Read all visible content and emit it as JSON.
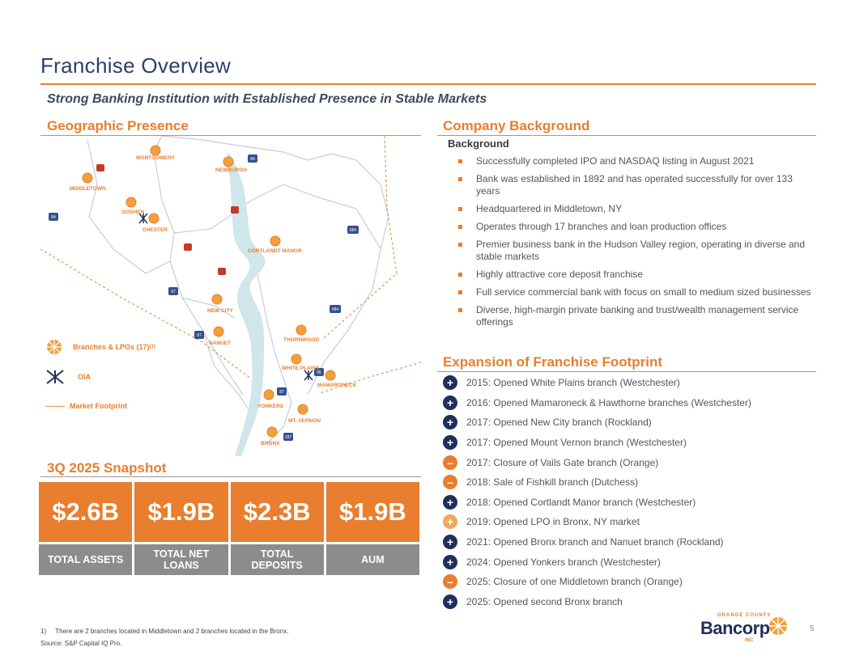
{
  "page": {
    "title": "Franchise Overview",
    "subtitle": "Strong Banking Institution with Established Presence in Stable Markets",
    "page_number": "5"
  },
  "geographic": {
    "heading": "Geographic Presence",
    "places": [
      "MONTGOMERY",
      "NEWBURGH",
      "MIDDLETOWN",
      "GOSHEN",
      "CHESTER",
      "CORTLANDT MANOR",
      "NEW CITY",
      "NANUET",
      "THORNWOOD",
      "WHITE PLAINS",
      "MAMARONECK",
      "YONKERS",
      "MT. VERNON",
      "BRONX"
    ],
    "highways": [
      "84",
      "84",
      "87",
      "87",
      "87",
      "684",
      "684",
      "95",
      "287"
    ],
    "legend": {
      "branches": "Branches & LPOs (17)",
      "branches_note": "(1)",
      "oia": "OIA",
      "footprint_dashes": "--------",
      "footprint": "Market Footprint"
    }
  },
  "snapshot": {
    "heading": "3Q 2025 Snapshot",
    "tiles": [
      {
        "value": "$2.6B",
        "label": "TOTAL ASSETS"
      },
      {
        "value": "$1.9B",
        "label": "TOTAL NET LOANS"
      },
      {
        "value": "$2.3B",
        "label": "TOTAL DEPOSITS"
      },
      {
        "value": "$1.9B",
        "label": "AUM"
      }
    ]
  },
  "background": {
    "heading": "Company Background",
    "subheading": "Background",
    "items": [
      "Successfully completed IPO and NASDAQ listing in August 2021",
      "Bank was established in 1892 and has operated successfully for over 133 years",
      "Headquartered in Middletown, NY",
      "Operates through 17 branches and loan production offices",
      "Premier business bank in the Hudson Valley region, operating in diverse and stable markets",
      "Highly attractive core deposit franchise",
      "Full service commercial bank with focus on small to medium sized businesses",
      "Diverse, high-margin private banking and trust/wealth management service offerings"
    ]
  },
  "expansion": {
    "heading": "Expansion of Franchise Footprint",
    "items": [
      {
        "type": "plus",
        "symbol": "+",
        "text": "2015: Opened White Plains branch (Westchester)"
      },
      {
        "type": "plus",
        "symbol": "+",
        "text": "2016: Opened Mamaroneck & Hawthorne branches (Westchester)"
      },
      {
        "type": "plus",
        "symbol": "+",
        "text": "2017: Opened New City branch (Rockland)"
      },
      {
        "type": "plus",
        "symbol": "+",
        "text": "2017: Opened Mount Vernon branch (Westchester)"
      },
      {
        "type": "minus",
        "symbol": "–",
        "text": "2017: Closure of Vails Gate branch (Orange)"
      },
      {
        "type": "minus",
        "symbol": "–",
        "text": "2018: Sale of Fishkill branch (Dutchess)"
      },
      {
        "type": "plus",
        "symbol": "+",
        "text": "2018: Opened Cortlandt Manor branch (Westchester)"
      },
      {
        "type": "lpo",
        "symbol": "+",
        "text": "2019: Opened LPO in Bronx, NY market"
      },
      {
        "type": "plus",
        "symbol": "+",
        "text": "2021: Opened Bronx branch and Nanuet branch (Rockland)"
      },
      {
        "type": "plus",
        "symbol": "+",
        "text": "2024: Opened Yonkers branch (Westchester)"
      },
      {
        "type": "minus",
        "symbol": "–",
        "text": "2025: Closure of one Middletown branch (Orange)"
      },
      {
        "type": "plus",
        "symbol": "+",
        "text": "2025: Opened second Bronx branch"
      }
    ]
  },
  "footer": {
    "footnote_num": "1)",
    "footnote": "There are 2 branches located in Middletown and 2 branches located in the Bronx.",
    "source": "Source: S&P Capital IQ Pro."
  },
  "logo": {
    "top": "ORANGE COUNTY",
    "main": "Bancorp",
    "inc": "INC"
  },
  "colors": {
    "accent": "#e87e2e",
    "navy": "#1f2f5c",
    "gray_tile": "#8c8c8c",
    "river": "#cfe6ea"
  }
}
